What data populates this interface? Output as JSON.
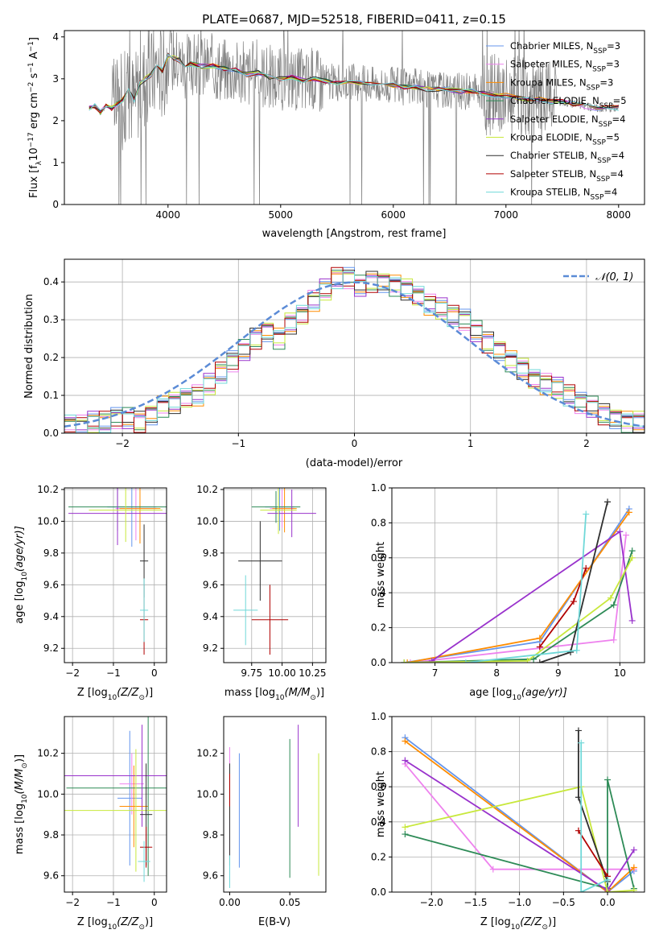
{
  "figure": {
    "title": "PLATE=0687, MJD=52518, FIBERID=0411, z=0.15"
  },
  "colors": {
    "chabrier_miles": "#6495ed",
    "salpeter_miles": "#ee82ee",
    "kroupa_miles": "#ff8c00",
    "chabrier_elodie": "#2e8b57",
    "salpeter_elodie": "#9932cc",
    "kroupa_elodie": "#c8e83c",
    "chabrier_stelib": "#2f2f2f",
    "salpeter_stelib": "#b00000",
    "kroupa_stelib": "#6fd8d8",
    "data": "#808080",
    "normal": "#5b8bd6"
  },
  "chart_data": [
    {
      "id": "spectrum",
      "type": "line",
      "xlabel": "wavelength [Angstrom, rest frame]",
      "ylabel": "Flux [f",
      "ylabel_sub": "λ",
      "ylabel_rest": "10",
      "ylabel_exp": "−17",
      "ylabel_units": " erg cm",
      "ylabel_exp2": "−2",
      "ylabel_s": " s",
      "ylabel_exp3": "−1",
      "ylabel_A": " A",
      "ylabel_exp4": "−1",
      "ylabel_end": "]",
      "xlim": [
        3080,
        8230
      ],
      "ylim": [
        0,
        4.15
      ],
      "xticks": [
        4000,
        5000,
        6000,
        7000,
        8000
      ],
      "yticks": [
        0,
        1,
        2,
        3,
        4
      ],
      "legend": [
        {
          "name": "Chabrier MILES, N",
          "sub": "SSP",
          "suffix": "=3",
          "color": "#6495ed"
        },
        {
          "name": "Salpeter MILES, N",
          "sub": "SSP",
          "suffix": "=3",
          "color": "#ee82ee"
        },
        {
          "name": "Kroupa MILES, N",
          "sub": "SSP",
          "suffix": "=3",
          "color": "#ff8c00"
        },
        {
          "name": "Chabrier ELODIE, N",
          "sub": "SSP",
          "suffix": "=5",
          "color": "#2e8b57"
        },
        {
          "name": "Salpeter ELODIE, N",
          "sub": "SSP",
          "suffix": "=4",
          "color": "#9932cc"
        },
        {
          "name": "Kroupa ELODIE, N",
          "sub": "SSP",
          "suffix": "=5",
          "color": "#c8e83c"
        },
        {
          "name": "Chabrier STELIB, N",
          "sub": "SSP",
          "suffix": "=4",
          "color": "#2f2f2f"
        },
        {
          "name": "Salpeter STELIB, N",
          "sub": "SSP",
          "suffix": "=4",
          "color": "#b00000"
        },
        {
          "name": "Kroupa STELIB, N",
          "sub": "SSP",
          "suffix": "=4",
          "color": "#6fd8d8"
        }
      ],
      "model_x": [
        3300,
        3350,
        3400,
        3450,
        3500,
        3550,
        3600,
        3650,
        3700,
        3750,
        3800,
        3850,
        3900,
        3950,
        4000,
        4050,
        4100,
        4150,
        4200,
        4300,
        4400,
        4500,
        4600,
        4700,
        4800,
        4900,
        5000,
        5100,
        5200,
        5300,
        5400,
        5500,
        5600,
        5700,
        5800,
        5900,
        6000,
        6100,
        6200,
        6300,
        6400,
        6500,
        6600,
        6700,
        6800,
        6900,
        7000,
        7100,
        7200,
        7300,
        7400,
        7500,
        7600,
        7700,
        7800,
        7900,
        8000
      ],
      "model_y": [
        2.3,
        2.35,
        2.2,
        2.35,
        2.3,
        2.4,
        2.5,
        2.75,
        2.5,
        2.9,
        3.0,
        3.1,
        3.3,
        3.2,
        3.55,
        3.5,
        3.45,
        3.3,
        3.35,
        3.3,
        3.3,
        3.25,
        3.2,
        3.1,
        3.15,
        3.05,
        3.0,
        3.05,
        2.95,
        3.0,
        2.95,
        2.9,
        2.95,
        2.9,
        2.9,
        2.85,
        2.85,
        2.8,
        2.8,
        2.75,
        2.75,
        2.75,
        2.7,
        2.7,
        2.65,
        2.6,
        2.6,
        2.55,
        2.5,
        2.5,
        2.45,
        2.45,
        2.4,
        2.35,
        2.3,
        2.3,
        2.3
      ]
    },
    {
      "id": "residuals",
      "type": "histogram",
      "xlabel": "(data-model)/error",
      "ylabel": "Normed distribution",
      "xlim": [
        -2.5,
        2.5
      ],
      "ylim": [
        0,
        0.46
      ],
      "xticks": [
        -2,
        -1,
        0,
        1,
        2
      ],
      "yticks": [
        0.0,
        0.1,
        0.2,
        0.3,
        0.4
      ],
      "legend": "𝒩(0, 1)",
      "bin_width": 0.1,
      "bins_start": -2.5,
      "hist": [
        0.02,
        0.02,
        0.03,
        0.03,
        0.04,
        0.04,
        0.03,
        0.05,
        0.07,
        0.08,
        0.09,
        0.1,
        0.13,
        0.16,
        0.19,
        0.22,
        0.25,
        0.27,
        0.25,
        0.29,
        0.31,
        0.35,
        0.38,
        0.41,
        0.41,
        0.39,
        0.4,
        0.4,
        0.39,
        0.38,
        0.36,
        0.34,
        0.33,
        0.31,
        0.3,
        0.27,
        0.24,
        0.22,
        0.19,
        0.17,
        0.14,
        0.13,
        0.12,
        0.1,
        0.08,
        0.07,
        0.05,
        0.04,
        0.03,
        0.03
      ],
      "jitter": [
        0.01,
        -0.012,
        0.015,
        -0.008,
        0.02,
        -0.015,
        0.01,
        -0.02,
        0.012,
        0.008
      ]
    },
    {
      "id": "age-Z",
      "type": "errorbar",
      "xlabel": "Z [log",
      "xlabel_sub": "10",
      "xlabel_rest": "(Z/Z",
      "xlabel_sun": "⊙",
      "xlabel_end": ")]",
      "ylabel": "age  [log",
      "ylabel_sub": "10",
      "ylabel_rest": "(age/yr)]",
      "xlim": [
        -2.2,
        0.3
      ],
      "ylim": [
        9.11,
        10.21
      ],
      "xticks": [
        -2,
        -1,
        0
      ],
      "yticks": [
        9.2,
        9.4,
        9.6,
        9.8,
        10.0,
        10.2
      ],
      "points": [
        {
          "x": -0.55,
          "y": 10.09,
          "xerr": 0.6,
          "yerr": 0.25,
          "color": "#6495ed"
        },
        {
          "x": -0.45,
          "y": 10.08,
          "xerr": 0.5,
          "yerr": 0.2,
          "color": "#ee82ee"
        },
        {
          "x": -0.35,
          "y": 10.08,
          "xerr": 0.5,
          "yerr": 0.22,
          "color": "#ff8c00"
        },
        {
          "x": -0.9,
          "y": 10.09,
          "xerr": 1.2,
          "yerr": 0.15,
          "color": "#2e8b57"
        },
        {
          "x": -0.9,
          "y": 10.05,
          "xerr": 1.2,
          "yerr": 0.2,
          "color": "#9932cc"
        },
        {
          "x": -0.7,
          "y": 10.07,
          "xerr": 0.9,
          "yerr": 0.2,
          "color": "#c8e83c"
        },
        {
          "x": -0.25,
          "y": 9.75,
          "xerr": 0.1,
          "yerr": 0.23,
          "color": "#2f2f2f"
        },
        {
          "x": -0.25,
          "y": 9.38,
          "xerr": 0.1,
          "yerr": 0.22,
          "color": "#b00000"
        },
        {
          "x": -0.25,
          "y": 9.44,
          "xerr": 0.1,
          "yerr": 0.2,
          "color": "#6fd8d8"
        }
      ]
    },
    {
      "id": "age-mass",
      "type": "errorbar",
      "xlabel": "mass [log",
      "xlabel_sub": "10",
      "xlabel_rest": "(M/M",
      "xlabel_sun": "⊙",
      "xlabel_end": ")]",
      "xlim": [
        9.52,
        10.36
      ],
      "ylim": [
        9.11,
        10.21
      ],
      "xticks": [
        9.75,
        10.0,
        10.25
      ],
      "xticklabels": [
        "9.75",
        "10.00",
        "10.25"
      ],
      "yticks": [
        9.2,
        9.4,
        9.6,
        9.8,
        10.0,
        10.2
      ],
      "points": [
        {
          "x": 9.98,
          "y": 10.09,
          "xerr": 0.12,
          "yerr": 0.15,
          "color": "#6495ed"
        },
        {
          "x": 10.0,
          "y": 10.08,
          "xerr": 0.1,
          "yerr": 0.12,
          "color": "#ee82ee"
        },
        {
          "x": 10.02,
          "y": 10.08,
          "xerr": 0.1,
          "yerr": 0.15,
          "color": "#ff8c00"
        },
        {
          "x": 9.95,
          "y": 10.09,
          "xerr": 0.2,
          "yerr": 0.1,
          "color": "#2e8b57"
        },
        {
          "x": 10.08,
          "y": 10.05,
          "xerr": 0.2,
          "yerr": 0.15,
          "color": "#9932cc"
        },
        {
          "x": 9.97,
          "y": 10.07,
          "xerr": 0.15,
          "yerr": 0.15,
          "color": "#c8e83c"
        },
        {
          "x": 9.82,
          "y": 9.75,
          "xerr": 0.18,
          "yerr": 0.25,
          "color": "#2f2f2f"
        },
        {
          "x": 9.9,
          "y": 9.38,
          "xerr": 0.15,
          "yerr": 0.22,
          "color": "#b00000"
        },
        {
          "x": 9.7,
          "y": 9.44,
          "xerr": 0.1,
          "yerr": 0.22,
          "color": "#6fd8d8"
        }
      ]
    },
    {
      "id": "mw-age",
      "type": "line",
      "xlabel": "age  [log",
      "xlabel_sub": "10",
      "xlabel_rest": "(age/yr)]",
      "ylabel": "mass weight",
      "xlim": [
        6.3,
        10.4
      ],
      "ylim": [
        0,
        1.0
      ],
      "xticks": [
        7,
        8,
        9,
        10
      ],
      "yticks": [
        0.0,
        0.2,
        0.4,
        0.6,
        0.8,
        1.0
      ],
      "series": [
        {
          "color": "#6495ed",
          "x": [
            6.5,
            8.7,
            10.15
          ],
          "y": [
            0.0,
            0.12,
            0.88
          ]
        },
        {
          "color": "#ee82ee",
          "x": [
            6.6,
            9.9,
            10.1
          ],
          "y": [
            0.0,
            0.13,
            0.73
          ]
        },
        {
          "color": "#ff8c00",
          "x": [
            6.55,
            8.7,
            10.15
          ],
          "y": [
            0.0,
            0.14,
            0.86
          ]
        },
        {
          "color": "#2e8b57",
          "x": [
            6.5,
            8.6,
            9.9,
            10.2
          ],
          "y": [
            0.0,
            0.02,
            0.33,
            0.64
          ]
        },
        {
          "color": "#9932cc",
          "x": [
            6.95,
            10.0,
            10.2
          ],
          "y": [
            0.01,
            0.75,
            0.24
          ]
        },
        {
          "color": "#c8e83c",
          "x": [
            6.5,
            8.5,
            9.85,
            10.2
          ],
          "y": [
            0.0,
            0.01,
            0.37,
            0.6
          ]
        },
        {
          "color": "#2f2f2f",
          "x": [
            8.7,
            9.2,
            9.8
          ],
          "y": [
            0.0,
            0.06,
            0.92
          ]
        },
        {
          "color": "#b00000",
          "x": [
            8.7,
            9.25,
            9.45
          ],
          "y": [
            0.09,
            0.35,
            0.54
          ]
        },
        {
          "color": "#6fd8d8",
          "x": [
            7.5,
            9.3,
            9.45
          ],
          "y": [
            0.0,
            0.07,
            0.85
          ]
        }
      ]
    },
    {
      "id": "mass-Z",
      "type": "errorbar",
      "xlabel": "Z [log",
      "xlabel_sub": "10",
      "xlabel_rest": "(Z/Z",
      "xlabel_sun": "⊙",
      "xlabel_end": ")]",
      "ylabel": "mass [log",
      "ylabel_sub": "10",
      "ylabel_rest": "(M/M",
      "ylabel_sun": "⊙",
      "ylabel_end": ")]",
      "xlim": [
        -2.2,
        0.3
      ],
      "ylim": [
        9.52,
        10.38
      ],
      "xticks": [
        -2,
        -1,
        0
      ],
      "yticks": [
        9.6,
        9.8,
        10.0,
        10.2
      ],
      "points": [
        {
          "x": -0.6,
          "y": 9.98,
          "xerr": 0.3,
          "yerr": 0.33,
          "color": "#6495ed"
        },
        {
          "x": -0.55,
          "y": 10.05,
          "xerr": 0.3,
          "yerr": 0.15,
          "color": "#ee82ee"
        },
        {
          "x": -0.5,
          "y": 9.94,
          "xerr": 0.35,
          "yerr": 0.2,
          "color": "#ff8c00"
        },
        {
          "x": -0.15,
          "y": 10.03,
          "xerr": 2.0,
          "yerr": 0.43,
          "color": "#2e8b57"
        },
        {
          "x": -0.3,
          "y": 10.09,
          "xerr": 2.2,
          "yerr": 0.25,
          "color": "#9932cc"
        },
        {
          "x": -0.45,
          "y": 9.92,
          "xerr": 2.0,
          "yerr": 0.3,
          "color": "#c8e83c"
        },
        {
          "x": -0.2,
          "y": 9.9,
          "xerr": 0.15,
          "yerr": 0.25,
          "color": "#2f2f2f"
        },
        {
          "x": -0.2,
          "y": 9.74,
          "xerr": 0.15,
          "yerr": 0.1,
          "color": "#b00000"
        },
        {
          "x": -0.25,
          "y": 9.67,
          "xerr": 0.15,
          "yerr": 0.1,
          "color": "#6fd8d8"
        }
      ]
    },
    {
      "id": "mass-ebv",
      "type": "errorbar",
      "xlabel": "E(B-V)",
      "xlim": [
        -0.005,
        0.08
      ],
      "ylim": [
        9.52,
        10.38
      ],
      "xticks": [
        0.0,
        0.05
      ],
      "xticklabels": [
        "0.00",
        "0.05"
      ],
      "yticks": [
        9.6,
        9.8,
        10.0,
        10.2
      ],
      "points": [
        {
          "x": 0.008,
          "y": 9.92,
          "xerr": 0,
          "yerr": 0.28,
          "color": "#6495ed"
        },
        {
          "x": 0.0,
          "y": 9.9,
          "xerr": 0,
          "yerr": 0.33,
          "color": "#ee82ee"
        },
        {
          "x": 0.0,
          "y": 10.0,
          "xerr": 0,
          "yerr": 0.12,
          "color": "#ff8c00"
        },
        {
          "x": 0.05,
          "y": 9.93,
          "xerr": 0,
          "yerr": 0.34,
          "color": "#2e8b57"
        },
        {
          "x": 0.057,
          "y": 10.09,
          "xerr": 0,
          "yerr": 0.25,
          "color": "#9932cc"
        },
        {
          "x": 0.074,
          "y": 9.9,
          "xerr": 0,
          "yerr": 0.3,
          "color": "#c8e83c"
        },
        {
          "x": 0.0,
          "y": 9.9,
          "xerr": 0,
          "yerr": 0.25,
          "color": "#2f2f2f"
        },
        {
          "x": 0.0,
          "y": 10.02,
          "xerr": 0,
          "yerr": 0.08,
          "color": "#b00000"
        },
        {
          "x": 0.0,
          "y": 9.62,
          "xerr": 0,
          "yerr": 0.08,
          "color": "#6fd8d8"
        }
      ]
    },
    {
      "id": "mw-Z",
      "type": "line",
      "xlabel": "Z [log",
      "xlabel_sub": "10",
      "xlabel_rest": "(Z/Z",
      "xlabel_sun": "⊙",
      "xlabel_end": ")]",
      "ylabel": "mass weight",
      "xlim": [
        -2.45,
        0.42
      ],
      "ylim": [
        0,
        1.0
      ],
      "xticks": [
        -2.0,
        -1.5,
        -1.0,
        -0.5,
        0.0
      ],
      "xticklabels": [
        "−2.0",
        "−1.5",
        "−1.0",
        "−0.5",
        "0.0"
      ],
      "yticks": [
        0.0,
        0.2,
        0.4,
        0.6,
        0.8,
        1.0
      ],
      "series": [
        {
          "color": "#6495ed",
          "x": [
            -2.3,
            0.0,
            0.3
          ],
          "y": [
            0.88,
            0.0,
            0.12
          ]
        },
        {
          "color": "#ee82ee",
          "x": [
            -2.3,
            -1.3,
            0.3
          ],
          "y": [
            0.73,
            0.13,
            0.13
          ]
        },
        {
          "color": "#ff8c00",
          "x": [
            -2.3,
            0.0,
            0.3
          ],
          "y": [
            0.86,
            0.0,
            0.14
          ]
        },
        {
          "color": "#2e8b57",
          "x": [
            -2.3,
            0.0,
            0.0,
            0.3
          ],
          "y": [
            0.33,
            0.02,
            0.64,
            0.02
          ]
        },
        {
          "color": "#9932cc",
          "x": [
            -2.3,
            0.0,
            0.3
          ],
          "y": [
            0.75,
            0.01,
            0.24
          ]
        },
        {
          "color": "#c8e83c",
          "x": [
            -2.3,
            -0.3,
            0.0,
            0.3
          ],
          "y": [
            0.37,
            0.6,
            0.0,
            0.01
          ]
        },
        {
          "color": "#2f2f2f",
          "x": [
            -0.33,
            -0.33,
            0.0
          ],
          "y": [
            0.92,
            0.54,
            0.06
          ]
        },
        {
          "color": "#b00000",
          "x": [
            -0.33,
            0.0
          ],
          "y": [
            0.35,
            0.09
          ]
        },
        {
          "color": "#6fd8d8",
          "x": [
            -0.3,
            -0.3,
            0.0
          ],
          "y": [
            0.85,
            0.0,
            0.07
          ]
        }
      ]
    }
  ]
}
